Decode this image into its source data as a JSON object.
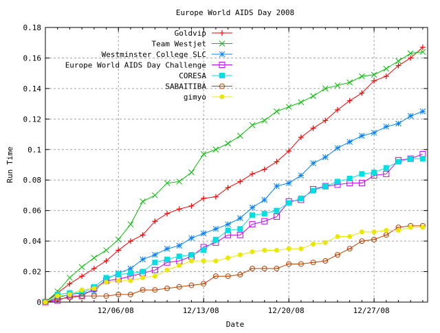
{
  "chart_data": {
    "type": "line",
    "title": "Europe World AIDS Day 2008",
    "xlabel": "Date",
    "ylabel": "Run Time",
    "x_start_date": "11/30/08",
    "x_days": [
      0,
      1,
      2,
      3,
      4,
      5,
      6,
      7,
      8,
      9,
      10,
      11,
      12,
      13,
      14,
      15,
      16,
      17,
      18,
      19,
      20,
      21,
      22,
      23,
      24,
      25,
      26,
      27,
      28,
      29,
      30,
      31
    ],
    "xlim_days": [
      0,
      31.4
    ],
    "x_ticks": [
      {
        "day": 6,
        "label": "12/06/08"
      },
      {
        "day": 13,
        "label": "12/13/08"
      },
      {
        "day": 20,
        "label": "12/20/08"
      },
      {
        "day": 27,
        "label": "12/27/08"
      }
    ],
    "ylim": [
      0,
      0.18
    ],
    "y_ticks": [
      {
        "v": 0,
        "label": "0"
      },
      {
        "v": 0.02,
        "label": "0.02"
      },
      {
        "v": 0.04,
        "label": "0.04"
      },
      {
        "v": 0.06,
        "label": "0.06"
      },
      {
        "v": 0.08,
        "label": "0.08"
      },
      {
        "v": 0.1,
        "label": "0.1"
      },
      {
        "v": 0.12,
        "label": "0.12"
      },
      {
        "v": 0.14,
        "label": "0.14"
      },
      {
        "v": 0.16,
        "label": "0.16"
      },
      {
        "v": 0.18,
        "label": "0.18"
      }
    ],
    "grid": true,
    "legend_position": "top-left",
    "series": [
      {
        "name": "Goldvip",
        "color": "#ff0000",
        "marker": "plus",
        "values": [
          0,
          0.006,
          0.012,
          0.017,
          0.022,
          0.027,
          0.034,
          0.04,
          0.044,
          0.053,
          0.058,
          0.061,
          0.063,
          0.068,
          0.069,
          0.075,
          0.079,
          0.084,
          0.087,
          0.092,
          0.099,
          0.108,
          0.114,
          0.119,
          0.126,
          0.132,
          0.137,
          0.145,
          0.148,
          0.155,
          0.16,
          0.167
        ]
      },
      {
        "name": "Team Westjet",
        "color": "#00c000",
        "marker": "cross",
        "values": [
          0,
          0.007,
          0.016,
          0.023,
          0.029,
          0.034,
          0.041,
          0.051,
          0.066,
          0.07,
          0.078,
          0.079,
          0.085,
          0.097,
          0.1,
          0.104,
          0.109,
          0.116,
          0.119,
          0.125,
          0.128,
          0.131,
          0.135,
          0.14,
          0.142,
          0.144,
          0.148,
          0.149,
          0.153,
          0.158,
          0.163,
          0.164
        ]
      },
      {
        "name": "Westminster College SLC",
        "color": "#0080ff",
        "marker": "star",
        "values": [
          0,
          0.003,
          0.005,
          0.006,
          0.007,
          0.015,
          0.019,
          0.022,
          0.028,
          0.031,
          0.035,
          0.037,
          0.042,
          0.045,
          0.048,
          0.051,
          0.055,
          0.062,
          0.067,
          0.076,
          0.078,
          0.083,
          0.091,
          0.095,
          0.101,
          0.105,
          0.109,
          0.111,
          0.115,
          0.117,
          0.122,
          0.125
        ]
      },
      {
        "name": "Europe World AIDS Day Challenge",
        "color": "#c000ff",
        "marker": "open-square",
        "values": [
          0,
          0.001,
          0.004,
          0.004,
          0.009,
          0.014,
          0.015,
          0.017,
          0.019,
          0.021,
          0.026,
          0.027,
          0.03,
          0.036,
          0.039,
          0.044,
          0.044,
          0.051,
          0.053,
          0.056,
          0.066,
          0.067,
          0.074,
          0.076,
          0.077,
          0.078,
          0.078,
          0.083,
          0.084,
          0.093,
          0.094,
          0.097
        ]
      },
      {
        "name": "CORESA",
        "color": "#00e0e0",
        "marker": "filled-square",
        "values": [
          0,
          0.005,
          0.006,
          0.006,
          0.01,
          0.016,
          0.018,
          0.019,
          0.02,
          0.026,
          0.028,
          0.03,
          0.031,
          0.034,
          0.041,
          0.047,
          0.048,
          0.057,
          0.058,
          0.06,
          0.065,
          0.068,
          0.073,
          0.076,
          0.079,
          0.081,
          0.084,
          0.085,
          0.088,
          0.092,
          0.094,
          0.094
        ]
      },
      {
        "name": "SABAITIBA",
        "color": "#c04000",
        "marker": "open-circle",
        "values": [
          0,
          0.002,
          0.003,
          0.004,
          0.004,
          0.004,
          0.005,
          0.005,
          0.008,
          0.008,
          0.009,
          0.01,
          0.011,
          0.012,
          0.017,
          0.017,
          0.018,
          0.022,
          0.022,
          0.022,
          0.025,
          0.025,
          0.026,
          0.027,
          0.031,
          0.035,
          0.04,
          0.041,
          0.044,
          0.049,
          0.05,
          0.05
        ]
      },
      {
        "name": "gimyo",
        "color": "#e8e800",
        "marker": "filled-circle",
        "values": [
          0,
          0.004,
          0.005,
          0.008,
          0.009,
          0.013,
          0.014,
          0.014,
          0.016,
          0.017,
          0.021,
          0.024,
          0.027,
          0.027,
          0.027,
          0.029,
          0.031,
          0.033,
          0.034,
          0.034,
          0.035,
          0.035,
          0.038,
          0.039,
          0.043,
          0.043,
          0.046,
          0.046,
          0.047,
          0.047,
          0.049,
          0.049
        ]
      }
    ]
  }
}
